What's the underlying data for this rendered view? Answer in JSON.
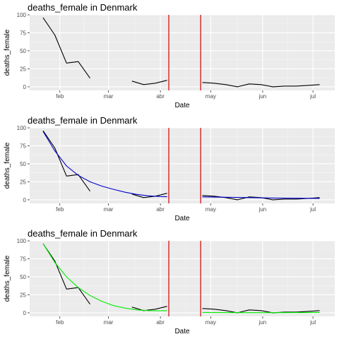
{
  "chart_data": [
    {
      "type": "line",
      "title": "deaths_female in Denmark",
      "xlabel": "Date",
      "ylabel": "deaths_female",
      "xlim": [
        "2020-01-14",
        "2020-07-14"
      ],
      "ylim": [
        -5,
        100
      ],
      "x_ticks": [
        {
          "date": "2020-02-01",
          "label": "feb"
        },
        {
          "date": "2020-03-01",
          "label": "mar"
        },
        {
          "date": "2020-04-01",
          "label": "abr"
        },
        {
          "date": "2020-05-01",
          "label": "may"
        },
        {
          "date": "2020-06-01",
          "label": "jun"
        },
        {
          "date": "2020-07-01",
          "label": "jul"
        }
      ],
      "y_ticks": [
        0,
        25,
        50,
        75,
        100
      ],
      "vlines": [
        "2020-04-06",
        "2020-04-25"
      ],
      "vline_color": "#d00000",
      "series": [
        {
          "role": "observed",
          "color": "#000000",
          "segments": [
            [
              [
                "2020-01-22",
                96
              ],
              [
                "2020-01-29",
                72
              ],
              [
                "2020-02-05",
                33
              ],
              [
                "2020-02-12",
                35
              ],
              [
                "2020-02-19",
                12
              ]
            ],
            [
              [
                "2020-03-15",
                8
              ],
              [
                "2020-03-22",
                3
              ],
              [
                "2020-03-29",
                5
              ],
              [
                "2020-04-05",
                9
              ]
            ],
            [
              [
                "2020-04-26",
                6
              ],
              [
                "2020-05-03",
                5
              ],
              [
                "2020-05-10",
                3
              ],
              [
                "2020-05-17",
                0
              ],
              [
                "2020-05-24",
                4
              ],
              [
                "2020-05-31",
                3
              ],
              [
                "2020-06-07",
                0
              ],
              [
                "2020-06-14",
                1
              ],
              [
                "2020-06-21",
                1
              ],
              [
                "2020-06-28",
                2
              ],
              [
                "2020-07-05",
                3
              ]
            ]
          ]
        }
      ]
    },
    {
      "type": "line",
      "title": "deaths_female in Denmark",
      "xlabel": "Date",
      "ylabel": "deaths_female",
      "xlim": [
        "2020-01-14",
        "2020-07-14"
      ],
      "ylim": [
        -5,
        100
      ],
      "x_ticks": [
        {
          "date": "2020-02-01",
          "label": "feb"
        },
        {
          "date": "2020-03-01",
          "label": "mar"
        },
        {
          "date": "2020-04-01",
          "label": "abr"
        },
        {
          "date": "2020-05-01",
          "label": "may"
        },
        {
          "date": "2020-06-01",
          "label": "jun"
        },
        {
          "date": "2020-07-01",
          "label": "jul"
        }
      ],
      "y_ticks": [
        0,
        25,
        50,
        75,
        100
      ],
      "vlines": [
        "2020-04-06",
        "2020-04-25"
      ],
      "vline_color": "#d00000",
      "series": [
        {
          "role": "observed",
          "color": "#000000",
          "segments": [
            [
              [
                "2020-01-22",
                96
              ],
              [
                "2020-01-29",
                72
              ],
              [
                "2020-02-05",
                33
              ],
              [
                "2020-02-12",
                35
              ],
              [
                "2020-02-19",
                12
              ]
            ],
            [
              [
                "2020-03-15",
                8
              ],
              [
                "2020-03-22",
                3
              ],
              [
                "2020-03-29",
                5
              ],
              [
                "2020-04-05",
                9
              ]
            ],
            [
              [
                "2020-04-26",
                6
              ],
              [
                "2020-05-03",
                5
              ],
              [
                "2020-05-10",
                3
              ],
              [
                "2020-05-17",
                0
              ],
              [
                "2020-05-24",
                4
              ],
              [
                "2020-05-31",
                3
              ],
              [
                "2020-06-07",
                0
              ],
              [
                "2020-06-14",
                1
              ],
              [
                "2020-06-21",
                1
              ],
              [
                "2020-06-28",
                2
              ],
              [
                "2020-07-05",
                3
              ]
            ]
          ]
        },
        {
          "role": "fitted",
          "color": "#0000cc",
          "segments": [
            [
              [
                "2020-01-22",
                95
              ],
              [
                "2020-01-29",
                68
              ],
              [
                "2020-02-05",
                47
              ],
              [
                "2020-02-12",
                34
              ],
              [
                "2020-02-19",
                25
              ],
              [
                "2020-02-26",
                19
              ],
              [
                "2020-03-04",
                14.5
              ],
              [
                "2020-03-11",
                10.5
              ],
              [
                "2020-03-18",
                7.5
              ],
              [
                "2020-03-25",
                5.5
              ],
              [
                "2020-04-01",
                4.5
              ],
              [
                "2020-04-05",
                4.2
              ]
            ],
            [
              [
                "2020-04-26",
                4
              ],
              [
                "2020-05-10",
                3.5
              ],
              [
                "2020-05-24",
                3
              ],
              [
                "2020-06-07",
                2.5
              ],
              [
                "2020-06-21",
                2.2
              ],
              [
                "2020-07-05",
                2
              ]
            ]
          ]
        }
      ]
    },
    {
      "type": "line",
      "title": "deaths_female in Denmark",
      "xlabel": "Date",
      "ylabel": "deaths_female",
      "xlim": [
        "2020-01-14",
        "2020-07-14"
      ],
      "ylim": [
        -5,
        100
      ],
      "x_ticks": [
        {
          "date": "2020-02-01",
          "label": "feb"
        },
        {
          "date": "2020-03-01",
          "label": "mar"
        },
        {
          "date": "2020-04-01",
          "label": "abr"
        },
        {
          "date": "2020-05-01",
          "label": "may"
        },
        {
          "date": "2020-06-01",
          "label": "jun"
        },
        {
          "date": "2020-07-01",
          "label": "jul"
        }
      ],
      "y_ticks": [
        0,
        25,
        50,
        75,
        100
      ],
      "vlines": [
        "2020-04-06",
        "2020-04-25"
      ],
      "vline_color": "#d00000",
      "series": [
        {
          "role": "observed",
          "color": "#000000",
          "segments": [
            [
              [
                "2020-01-22",
                96
              ],
              [
                "2020-01-29",
                72
              ],
              [
                "2020-02-05",
                33
              ],
              [
                "2020-02-12",
                35
              ],
              [
                "2020-02-19",
                12
              ]
            ],
            [
              [
                "2020-03-15",
                8
              ],
              [
                "2020-03-22",
                3
              ],
              [
                "2020-03-29",
                5
              ],
              [
                "2020-04-05",
                9
              ]
            ],
            [
              [
                "2020-04-26",
                6
              ],
              [
                "2020-05-03",
                5
              ],
              [
                "2020-05-10",
                3
              ],
              [
                "2020-05-17",
                0
              ],
              [
                "2020-05-24",
                4
              ],
              [
                "2020-05-31",
                3
              ],
              [
                "2020-06-07",
                0
              ],
              [
                "2020-06-14",
                1
              ],
              [
                "2020-06-21",
                1
              ],
              [
                "2020-06-28",
                2
              ],
              [
                "2020-07-05",
                3
              ]
            ]
          ]
        },
        {
          "role": "fitted",
          "color": "#00ee00",
          "segments": [
            [
              [
                "2020-01-22",
                96
              ],
              [
                "2020-01-29",
                70
              ],
              [
                "2020-02-05",
                50
              ],
              [
                "2020-02-12",
                35
              ],
              [
                "2020-02-19",
                24
              ],
              [
                "2020-02-26",
                16
              ],
              [
                "2020-03-04",
                10
              ],
              [
                "2020-03-11",
                6.5
              ],
              [
                "2020-03-18",
                4
              ],
              [
                "2020-03-25",
                3
              ],
              [
                "2020-04-01",
                2.8
              ],
              [
                "2020-04-05",
                3
              ]
            ],
            [
              [
                "2020-04-26",
                0.5
              ],
              [
                "2020-05-10",
                0.3
              ],
              [
                "2020-05-24",
                0.2
              ],
              [
                "2020-06-07",
                0.2
              ],
              [
                "2020-06-21",
                0.3
              ],
              [
                "2020-07-05",
                0.5
              ]
            ]
          ]
        }
      ]
    }
  ]
}
